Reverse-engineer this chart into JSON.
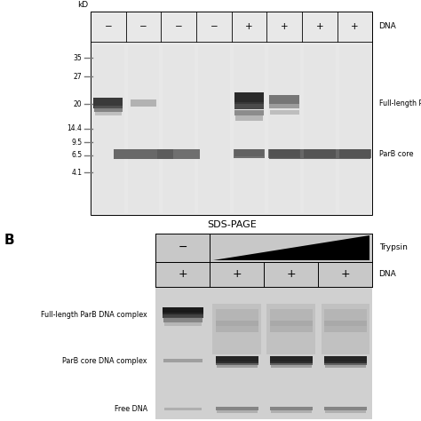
{
  "panel_A": {
    "title": "SDS-PAGE",
    "kD_labels": [
      "35",
      "27",
      "20",
      "14.4",
      "9.5",
      "6.5",
      "4.1"
    ],
    "dna_labels": [
      "−",
      "−",
      "−",
      "−",
      "+",
      "+",
      "+",
      "+"
    ],
    "right_labels": [
      "Full-length ParB",
      "ParB core"
    ],
    "gel_bg": "#e0e0e0",
    "marker_color": "#888888"
  },
  "panel_B": {
    "trypsin_label": "Trypsin",
    "dna_label": "DNA",
    "dna_signs": [
      "+",
      "+",
      "+",
      "+"
    ],
    "band_labels": [
      "Full-length ParB DNA complex",
      "ParB core DNA complex",
      "Free DNA"
    ],
    "gel_bg": "#c8c8c8"
  },
  "fig_bg": "#ffffff",
  "label_B": "B"
}
